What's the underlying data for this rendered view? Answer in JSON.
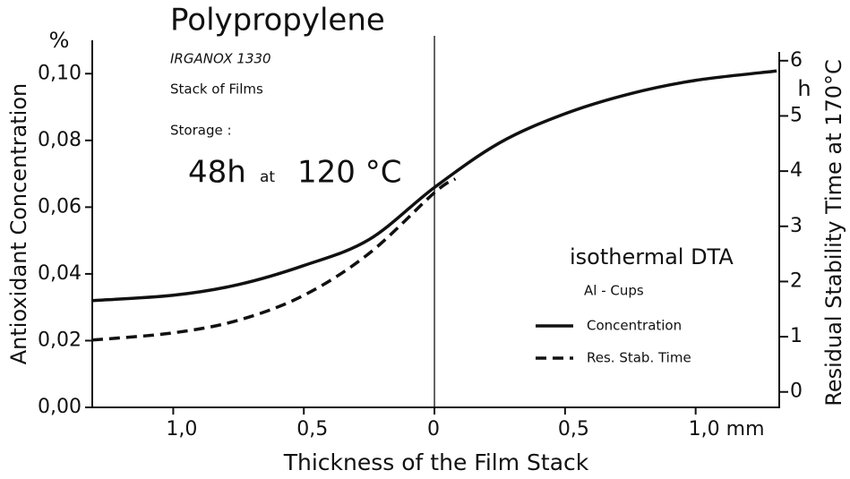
{
  "chart_data": {
    "type": "line",
    "title": "Polypropylene",
    "notes": [
      "IRGANOX 1330",
      "Stack of Films",
      "Storage :"
    ],
    "storage": [
      "48h",
      "at",
      "120 °C"
    ],
    "method": "isothermal DTA",
    "method_detail": "Al - Cups",
    "x_label": "Thickness of the Film Stack",
    "y_label": "Antioxidant Concentration",
    "y_unit": "%",
    "y2_label": "Residual Stability Time at 170°C",
    "y2_unit": "h",
    "xlim": [
      -1.31,
      1.32
    ],
    "xticks": [
      {
        "value": -1.0,
        "label": "1,0"
      },
      {
        "value": -0.5,
        "label": "0,5"
      },
      0,
      {
        "value": 0.5,
        "label": "0,5"
      },
      {
        "value": 1.0,
        "label": "1,0 mm"
      }
    ],
    "ylim": [
      0,
      0.11
    ],
    "yticks": [
      {
        "value": 0,
        "label": "0,00"
      },
      {
        "value": 0.02,
        "label": "0,02"
      },
      {
        "value": 0.04,
        "label": "0,04"
      },
      {
        "value": 0.06,
        "label": "0,06"
      },
      {
        "value": 0.08,
        "label": "0,08"
      },
      {
        "value": 0.1,
        "label": "0,10"
      }
    ],
    "y2lim": [
      -0.28,
      6.37
    ],
    "y2ticks": [
      0,
      1,
      2,
      3,
      4,
      5,
      6
    ],
    "series": [
      {
        "name": "Concentration",
        "color": "#111111",
        "dash": false,
        "x": [
          -1.31,
          -1.0,
          -0.75,
          -0.5,
          -0.25,
          0,
          0.25,
          0.5,
          0.75,
          1.0,
          1.31
        ],
        "values": [
          0.032,
          0.0336,
          0.0368,
          0.0425,
          0.0503,
          0.0659,
          0.0793,
          0.088,
          0.094,
          0.098,
          0.1008
        ]
      },
      {
        "name": "Res. Stab. Time",
        "color": "#111111",
        "dash": true,
        "axis": "y2",
        "x": [
          -1.31,
          -1.0,
          -0.75,
          -0.5,
          -0.25,
          0,
          0.08
        ],
        "values": [
          0.94,
          1.07,
          1.3,
          1.75,
          2.51,
          3.61,
          3.86
        ]
      }
    ]
  }
}
